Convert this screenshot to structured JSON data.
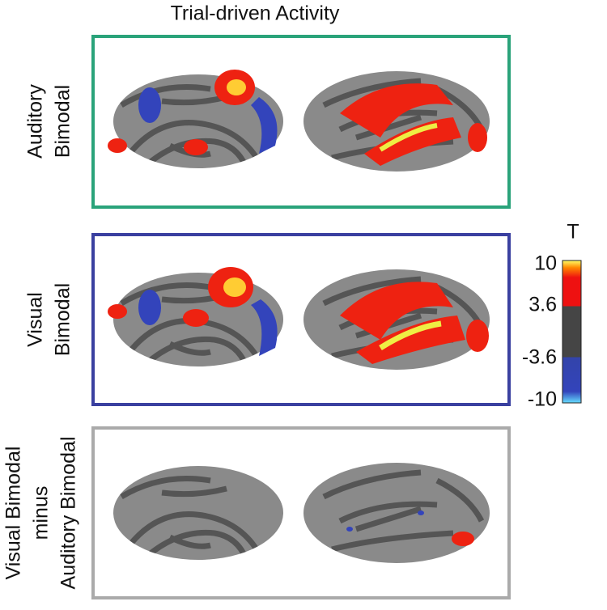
{
  "title": "Trial-driven Activity",
  "rows": [
    {
      "label_lines": [
        "Auditory",
        "Bimodal"
      ]
    },
    {
      "label_lines": [
        "Visual",
        "Bimodal"
      ]
    },
    {
      "label_lines": [
        "Visual Bimodal",
        "minus",
        "Auditory Bimodal"
      ]
    }
  ],
  "colorbar": {
    "label": "T",
    "ticks": [
      10,
      3.6,
      -3.6,
      -10
    ]
  }
}
